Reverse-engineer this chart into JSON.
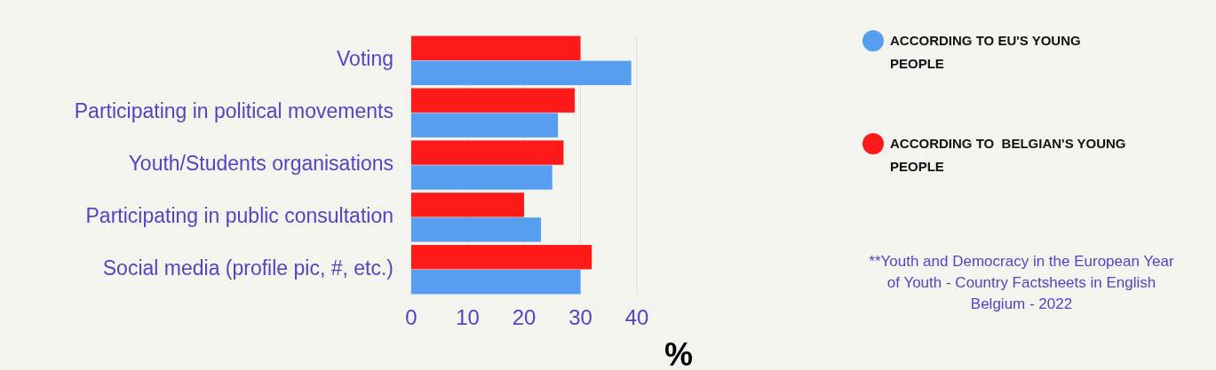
{
  "chart_data": {
    "type": "bar",
    "orientation": "horizontal",
    "categories": [
      "Voting",
      "Participating in political movements",
      "Youth/Students organisations",
      "Participating in public consultation",
      "Social media (profile pic, #, etc.)"
    ],
    "series": [
      {
        "name": "ACCORDING TO EU'S YOUNG PEOPLE",
        "color": "#589ef0",
        "values": [
          39,
          26,
          25,
          23,
          30
        ]
      },
      {
        "name": "ACCORDING TO  BELGIAN'S YOUNG PEOPLE",
        "color": "#ff1a1a",
        "values": [
          30,
          29,
          27,
          20,
          32
        ]
      }
    ],
    "xlim": [
      0,
      40
    ],
    "xticks": [
      0,
      10,
      20,
      30,
      40
    ],
    "xlabel": "%",
    "grid": "x",
    "legend": "top right",
    "annotations": [
      "**Youth and Democracy in the European Year of Youth - Country Factsheets in English Belgium - 2022"
    ]
  }
}
